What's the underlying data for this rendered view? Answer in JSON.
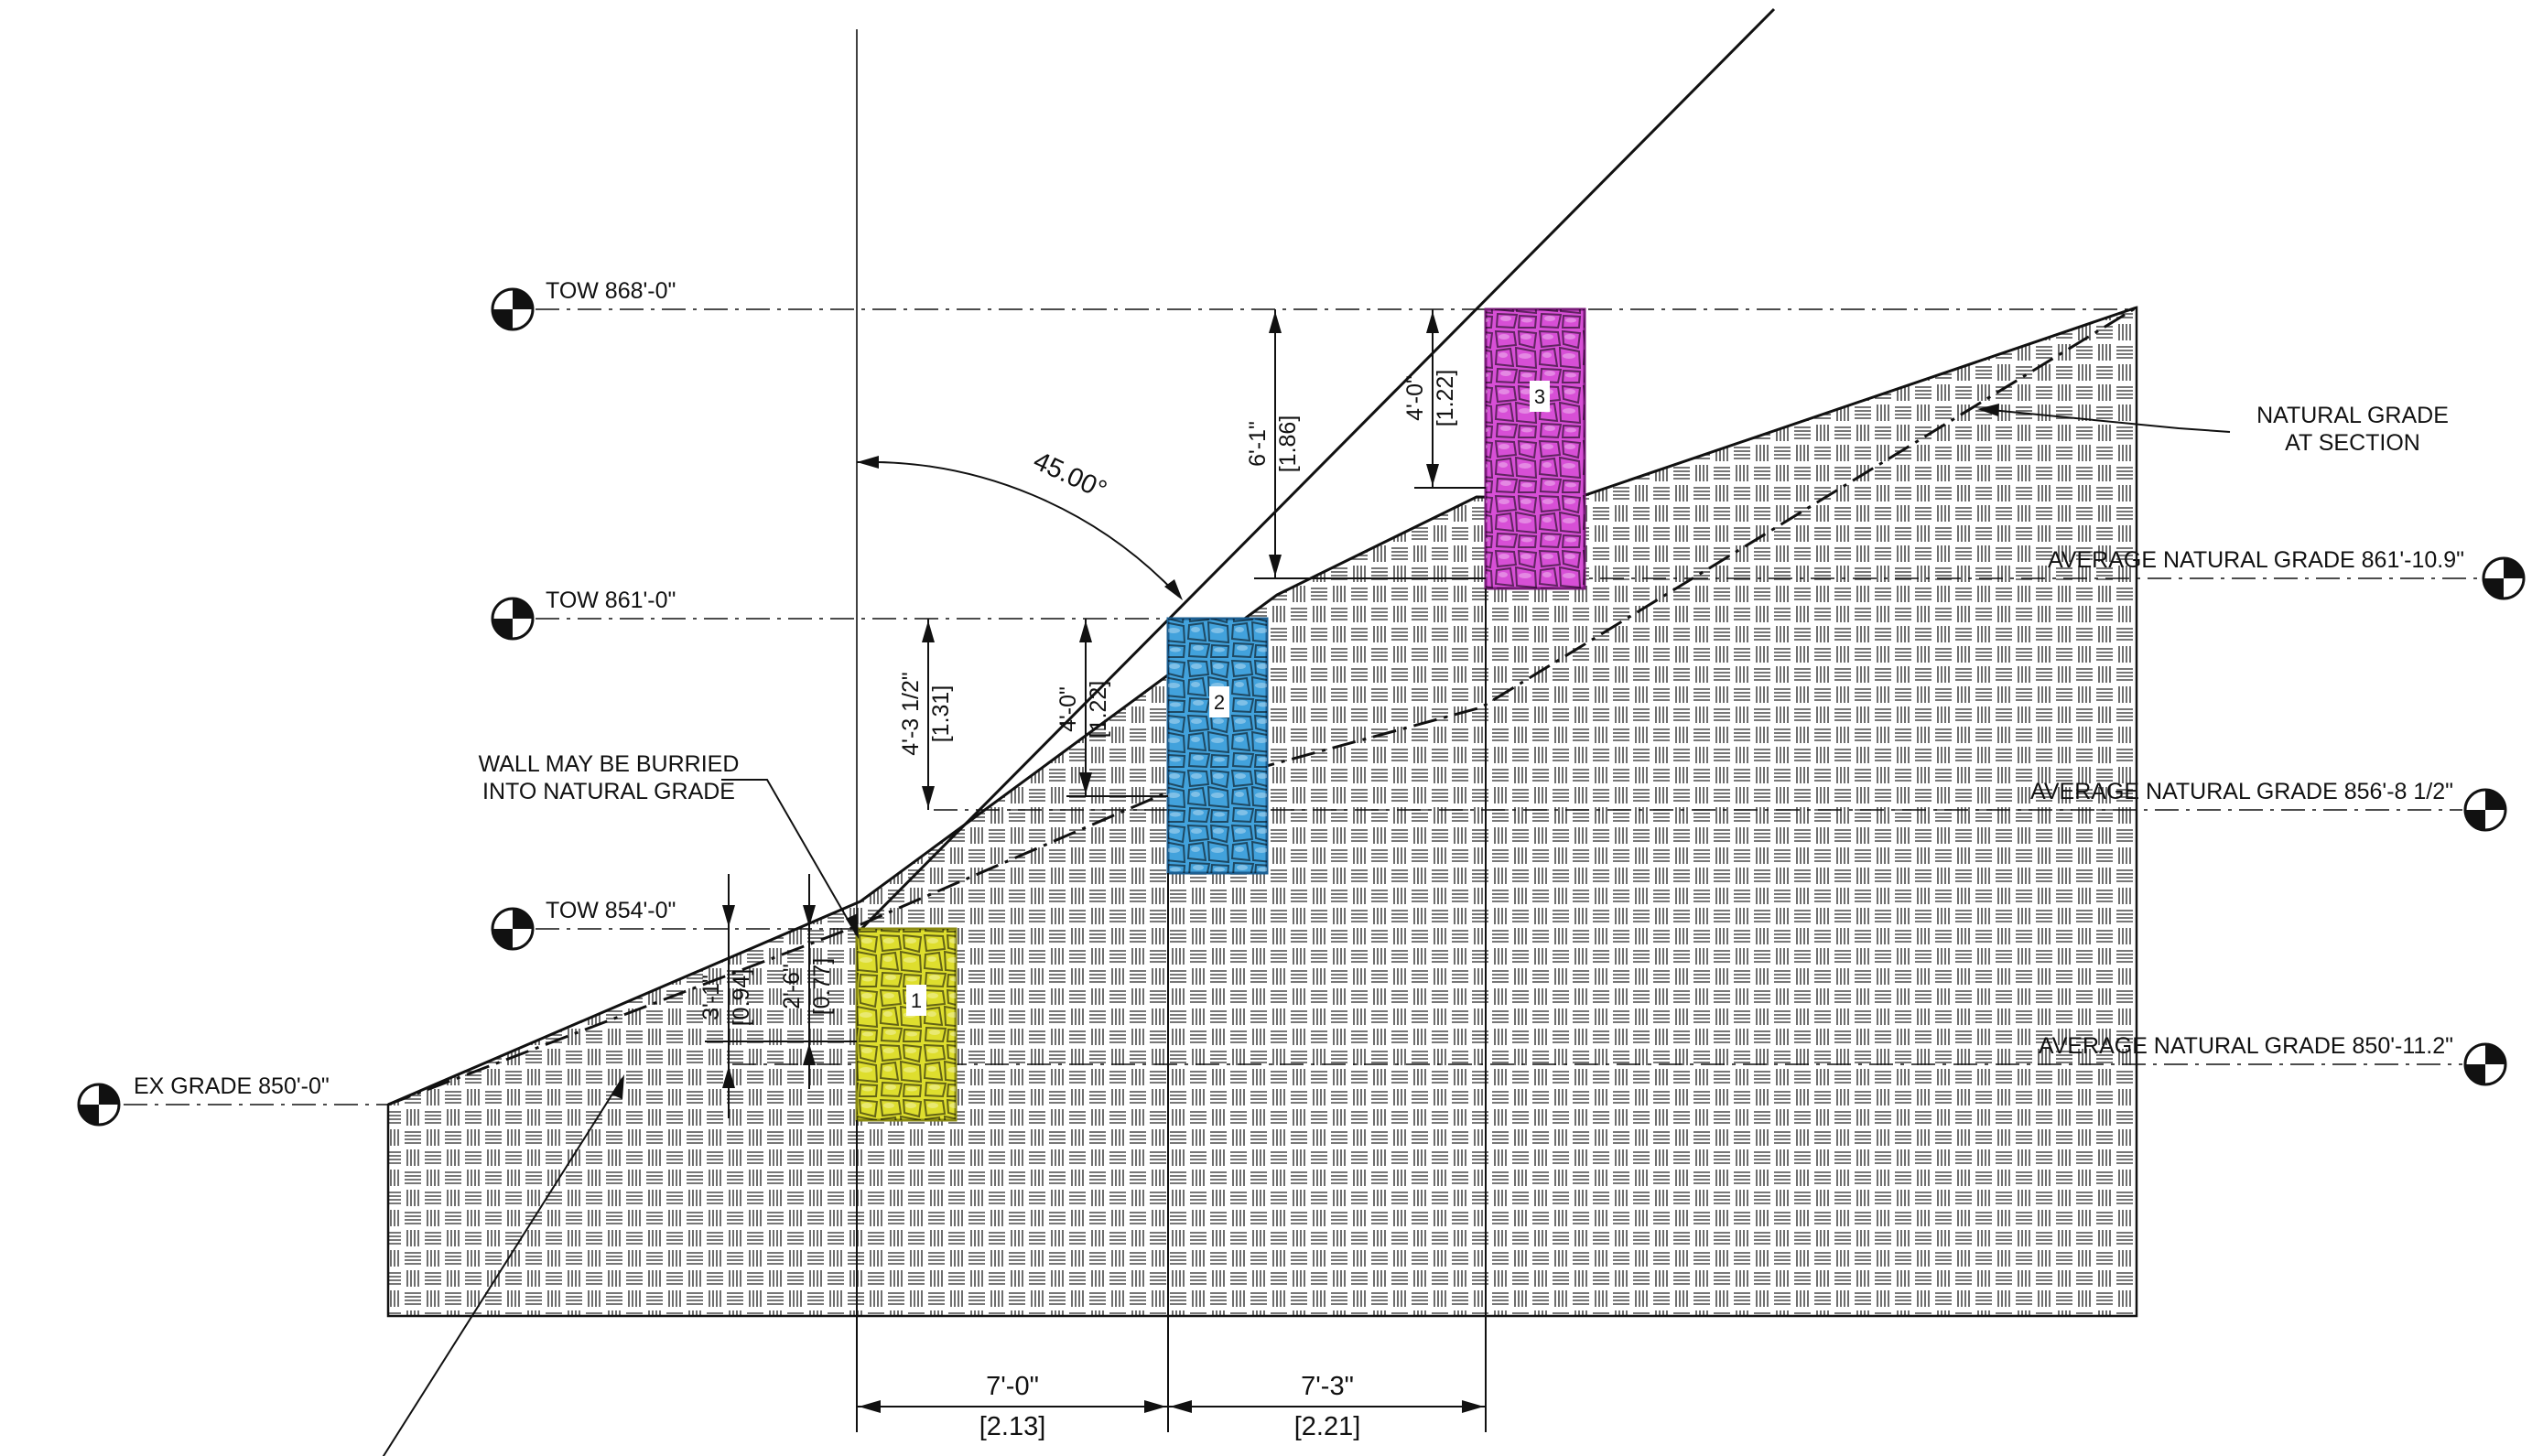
{
  "colors": {
    "line": "#111111",
    "hatch": "#4a4a4a",
    "wall_1": "#dede2e",
    "wall_1_stroke": "#8a8a12",
    "wall_2": "#42a2dc",
    "wall_2_stroke": "#1c5f92",
    "wall_3": "#d74fd6",
    "wall_3_stroke": "#7a1b7a"
  },
  "elevations": {
    "tow_top": "TOW   868'-0\"",
    "tow_mid": "TOW   861'-0\"",
    "tow_low": "TOW   854'-0\"",
    "ex_grade": "EX GRADE   850'-0\""
  },
  "grades": {
    "upper": "AVERAGE NATURAL GRADE   861'-10.9\"",
    "middle": "AVERAGE NATURAL GRADE   856'-8 1/2\"",
    "lower": "AVERAGE NATURAL GRADE   850'-11.2\""
  },
  "notes": {
    "natural_grade_line1": "NATURAL GRADE",
    "natural_grade_line2": "AT SECTION",
    "buried_line1": "WALL MAY BE BURRIED",
    "buried_line2": "INTO NATURAL GRADE"
  },
  "angle": "45.00°",
  "walls": [
    "1",
    "2",
    "3"
  ],
  "dimensions": {
    "h_1_ft": "7'-0\"",
    "h_1_m": "[2.13]",
    "h_2_ft": "7'-3\"",
    "h_2_m": "[2.21]",
    "v_top_ft": "6'-1\"",
    "v_top_m": "[1.86]",
    "v_w3_ft": "4'-0\"",
    "v_w3_m": "[1.22]",
    "v_mid_ft": "4'-3 1/2\"",
    "v_mid_m": "[1.31]",
    "v_w2_ft": "4'-0\"",
    "v_w2_m": "[1.22]",
    "v_low_ft": "3'-1\"",
    "v_low_m": "[0.94]",
    "v_w1_ft": "2'-6\"",
    "v_w1_m": "[0.77]"
  }
}
